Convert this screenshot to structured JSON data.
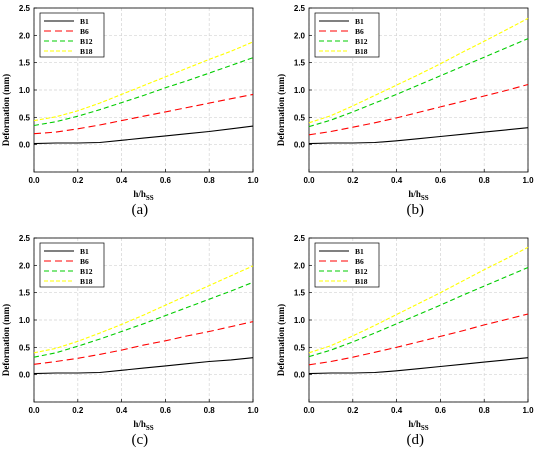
{
  "chart_data": [
    {
      "type": "line",
      "caption": "(a)",
      "xlabel_main": "h/h",
      "xlabel_sub": "SS",
      "ylabel": "Deformation (mm)",
      "xlim": [
        0,
        1.0
      ],
      "ylim": [
        -0.5,
        2.5
      ],
      "xticks": [
        "0.0",
        "0.2",
        "0.4",
        "0.6",
        "0.8",
        "1.0"
      ],
      "yticks": [
        "0.0",
        "0.5",
        "1.0",
        "1.5",
        "2.0",
        "2.5"
      ],
      "legend_position": "top-left",
      "grid": true,
      "series": [
        {
          "name": "B1",
          "color": "#000000",
          "dash": "solid",
          "x": [
            0,
            0.1,
            0.2,
            0.3,
            0.4,
            0.5,
            0.6,
            0.7,
            0.8,
            0.9,
            1.0
          ],
          "y": [
            0.02,
            0.03,
            0.03,
            0.04,
            0.08,
            0.12,
            0.16,
            0.2,
            0.24,
            0.29,
            0.34
          ]
        },
        {
          "name": "B6",
          "color": "#ff0000",
          "dash": "long",
          "x": [
            0,
            0.1,
            0.2,
            0.3,
            0.4,
            0.5,
            0.6,
            0.7,
            0.8,
            0.9,
            1.0
          ],
          "y": [
            0.2,
            0.23,
            0.29,
            0.36,
            0.44,
            0.52,
            0.6,
            0.68,
            0.76,
            0.84,
            0.92
          ]
        },
        {
          "name": "B12",
          "color": "#00cc00",
          "dash": "medium",
          "x": [
            0,
            0.1,
            0.2,
            0.3,
            0.4,
            0.5,
            0.6,
            0.7,
            0.8,
            0.9,
            1.0
          ],
          "y": [
            0.35,
            0.42,
            0.52,
            0.64,
            0.77,
            0.9,
            1.04,
            1.17,
            1.31,
            1.45,
            1.59
          ]
        },
        {
          "name": "B18",
          "color": "#ffff00",
          "dash": "short",
          "x": [
            0,
            0.1,
            0.2,
            0.3,
            0.4,
            0.5,
            0.6,
            0.7,
            0.8,
            0.9,
            1.0
          ],
          "y": [
            0.44,
            0.51,
            0.62,
            0.76,
            0.92,
            1.08,
            1.24,
            1.4,
            1.56,
            1.71,
            1.88
          ]
        }
      ]
    },
    {
      "type": "line",
      "caption": "(b)",
      "xlabel_main": "h/h",
      "xlabel_sub": "SS",
      "ylabel": "Deformation (mm)",
      "xlim": [
        0,
        1.0
      ],
      "ylim": [
        -0.5,
        2.5
      ],
      "xticks": [
        "0.0",
        "0.2",
        "0.4",
        "0.6",
        "0.8",
        "1.0"
      ],
      "yticks": [
        "0.0",
        "0.5",
        "1.0",
        "1.5",
        "2.0",
        "2.5"
      ],
      "legend_position": "top-left",
      "grid": true,
      "series": [
        {
          "name": "B1",
          "color": "#000000",
          "dash": "solid",
          "x": [
            0,
            0.1,
            0.2,
            0.3,
            0.4,
            0.5,
            0.6,
            0.7,
            0.8,
            0.9,
            1.0
          ],
          "y": [
            0.02,
            0.03,
            0.03,
            0.04,
            0.07,
            0.11,
            0.15,
            0.19,
            0.23,
            0.27,
            0.31
          ]
        },
        {
          "name": "B6",
          "color": "#ff0000",
          "dash": "long",
          "x": [
            0,
            0.1,
            0.2,
            0.3,
            0.4,
            0.5,
            0.6,
            0.7,
            0.8,
            0.9,
            1.0
          ],
          "y": [
            0.18,
            0.24,
            0.32,
            0.4,
            0.49,
            0.59,
            0.69,
            0.79,
            0.89,
            0.99,
            1.1
          ]
        },
        {
          "name": "B12",
          "color": "#00cc00",
          "dash": "medium",
          "x": [
            0,
            0.1,
            0.2,
            0.3,
            0.4,
            0.5,
            0.6,
            0.7,
            0.8,
            0.9,
            1.0
          ],
          "y": [
            0.33,
            0.45,
            0.6,
            0.76,
            0.92,
            1.09,
            1.26,
            1.43,
            1.6,
            1.77,
            1.94
          ]
        },
        {
          "name": "B18",
          "color": "#ffff00",
          "dash": "short",
          "x": [
            0,
            0.1,
            0.2,
            0.3,
            0.4,
            0.5,
            0.6,
            0.7,
            0.8,
            0.9,
            1.0
          ],
          "y": [
            0.4,
            0.53,
            0.71,
            0.9,
            1.09,
            1.28,
            1.48,
            1.69,
            1.89,
            2.1,
            2.31
          ]
        }
      ]
    },
    {
      "type": "line",
      "caption": "(c)",
      "xlabel_main": "h/h",
      "xlabel_sub": "SS",
      "ylabel": "Deformation (mm)",
      "xlim": [
        0,
        1.0
      ],
      "ylim": [
        -0.5,
        2.5
      ],
      "xticks": [
        "0.0",
        "0.2",
        "0.4",
        "0.6",
        "0.8",
        "1.0"
      ],
      "yticks": [
        "0.0",
        "0.5",
        "1.0",
        "1.5",
        "2.0",
        "2.5"
      ],
      "legend_position": "top-left",
      "grid": true,
      "series": [
        {
          "name": "B1",
          "color": "#000000",
          "dash": "solid",
          "x": [
            0,
            0.1,
            0.2,
            0.3,
            0.4,
            0.5,
            0.6,
            0.7,
            0.8,
            0.9,
            1.0
          ],
          "y": [
            0.02,
            0.03,
            0.03,
            0.04,
            0.08,
            0.12,
            0.16,
            0.2,
            0.24,
            0.27,
            0.31
          ]
        },
        {
          "name": "B6",
          "color": "#ff0000",
          "dash": "long",
          "x": [
            0,
            0.1,
            0.2,
            0.3,
            0.4,
            0.5,
            0.6,
            0.7,
            0.8,
            0.9,
            1.0
          ],
          "y": [
            0.19,
            0.24,
            0.3,
            0.37,
            0.45,
            0.54,
            0.62,
            0.71,
            0.79,
            0.88,
            0.97
          ]
        },
        {
          "name": "B12",
          "color": "#00cc00",
          "dash": "medium",
          "x": [
            0,
            0.1,
            0.2,
            0.3,
            0.4,
            0.5,
            0.6,
            0.7,
            0.8,
            0.9,
            1.0
          ],
          "y": [
            0.32,
            0.4,
            0.52,
            0.65,
            0.79,
            0.93,
            1.08,
            1.23,
            1.38,
            1.53,
            1.69
          ]
        },
        {
          "name": "B18",
          "color": "#ffff00",
          "dash": "short",
          "x": [
            0,
            0.1,
            0.2,
            0.3,
            0.4,
            0.5,
            0.6,
            0.7,
            0.8,
            0.9,
            1.0
          ],
          "y": [
            0.4,
            0.48,
            0.61,
            0.76,
            0.92,
            1.09,
            1.27,
            1.45,
            1.63,
            1.81,
            1.99
          ]
        }
      ]
    },
    {
      "type": "line",
      "caption": "(d)",
      "xlabel_main": "h/h",
      "xlabel_sub": "SS",
      "ylabel": "Deformation (mm)",
      "xlim": [
        0,
        1.0
      ],
      "ylim": [
        -0.5,
        2.5
      ],
      "xticks": [
        "0.0",
        "0.2",
        "0.4",
        "0.6",
        "0.8",
        "1.0"
      ],
      "yticks": [
        "0.0",
        "0.5",
        "1.0",
        "1.5",
        "2.0",
        "2.5"
      ],
      "legend_position": "top-left",
      "grid": true,
      "series": [
        {
          "name": "B1",
          "color": "#000000",
          "dash": "solid",
          "x": [
            0,
            0.1,
            0.2,
            0.3,
            0.4,
            0.5,
            0.6,
            0.7,
            0.8,
            0.9,
            1.0
          ],
          "y": [
            0.02,
            0.03,
            0.03,
            0.04,
            0.07,
            0.11,
            0.15,
            0.19,
            0.23,
            0.27,
            0.31
          ]
        },
        {
          "name": "B6",
          "color": "#ff0000",
          "dash": "long",
          "x": [
            0,
            0.1,
            0.2,
            0.3,
            0.4,
            0.5,
            0.6,
            0.7,
            0.8,
            0.9,
            1.0
          ],
          "y": [
            0.18,
            0.24,
            0.32,
            0.41,
            0.5,
            0.6,
            0.7,
            0.8,
            0.91,
            1.01,
            1.11
          ]
        },
        {
          "name": "B12",
          "color": "#00cc00",
          "dash": "medium",
          "x": [
            0,
            0.1,
            0.2,
            0.3,
            0.4,
            0.5,
            0.6,
            0.7,
            0.8,
            0.9,
            1.0
          ],
          "y": [
            0.33,
            0.45,
            0.6,
            0.76,
            0.93,
            1.1,
            1.27,
            1.45,
            1.62,
            1.79,
            1.96
          ]
        },
        {
          "name": "B18",
          "color": "#ffff00",
          "dash": "short",
          "x": [
            0,
            0.1,
            0.2,
            0.3,
            0.4,
            0.5,
            0.6,
            0.7,
            0.8,
            0.9,
            1.0
          ],
          "y": [
            0.4,
            0.53,
            0.71,
            0.9,
            1.1,
            1.3,
            1.5,
            1.71,
            1.92,
            2.12,
            2.33
          ]
        }
      ]
    }
  ]
}
